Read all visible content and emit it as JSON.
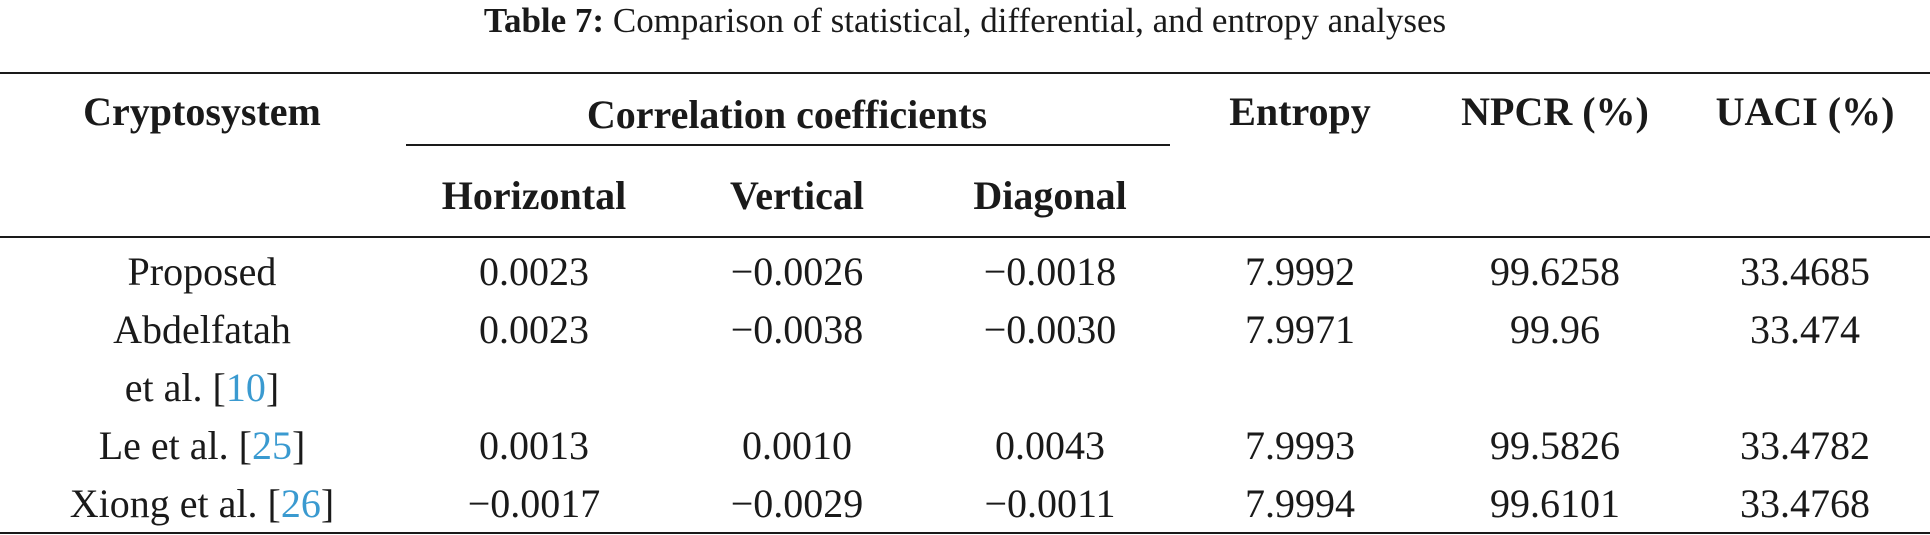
{
  "caption": {
    "label": "Table 7:",
    "text": "Comparison of statistical, differential, and entropy analyses"
  },
  "headers": {
    "cryptosystem": "Cryptosystem",
    "correlation": "Correlation coefficients",
    "horizontal": "Horizontal",
    "vertical": "Vertical",
    "diagonal": "Diagonal",
    "entropy": "Entropy",
    "npcr": "NPCR (%)",
    "uaci": "UACI (%)"
  },
  "rows": [
    {
      "name": "Proposed",
      "ref": "",
      "horizontal": "0.0023",
      "vertical": "−0.0026",
      "diagonal": "−0.0018",
      "entropy": "7.9992",
      "npcr": "99.6258",
      "uaci": "33.4685"
    },
    {
      "name": "Abdelfatah",
      "name_line2": "et al. [",
      "ref": "10",
      "ref_close": "]",
      "horizontal": "0.0023",
      "vertical": "−0.0038",
      "diagonal": "−0.0030",
      "entropy": "7.9971",
      "npcr": "99.96",
      "uaci": "33.474"
    },
    {
      "name": "Le et al. [",
      "ref": "25",
      "ref_close": "]",
      "horizontal": "0.0013",
      "vertical": "0.0010",
      "diagonal": "0.0043",
      "entropy": "7.9993",
      "npcr": "99.5826",
      "uaci": "33.4782"
    },
    {
      "name": "Xiong et al. [",
      "ref": "26",
      "ref_close": "]",
      "horizontal": "−0.0017",
      "vertical": "−0.0029",
      "diagonal": "−0.0011",
      "entropy": "7.9994",
      "npcr": "99.6101",
      "uaci": "33.4768"
    }
  ],
  "colors": {
    "text": "#1a1a1a",
    "reference_link": "#3a9ad0"
  }
}
